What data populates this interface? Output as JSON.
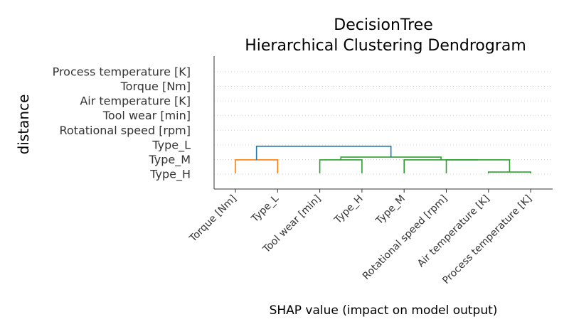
{
  "chart_data": {
    "type": "dendrogram",
    "title_line1": "DecisionTree",
    "title_line2": "Hierarchical Clustering Dendrogram",
    "xlabel": "SHAP value (impact on model output)",
    "ylabel": "distance",
    "y_tick_labels": [
      "Process temperature [K]",
      "Torque [Nm]",
      "Air temperature [K]",
      "Tool wear [min]",
      "Rotational speed [rpm]",
      "Type_L",
      "Type_M",
      "Type_H"
    ],
    "leaves": [
      "Torque [Nm]",
      "Type_L",
      "Tool wear [min]",
      "Type_H",
      "Type_M",
      "Rotational speed [rpm]",
      "Air temperature [K]",
      "Process temperature [K]"
    ],
    "ylim": [
      0,
      9
    ],
    "links": [
      {
        "left": 0,
        "right": 1,
        "height": 1.0,
        "color": "#ff7f0e"
      },
      {
        "left": 2,
        "right": 3,
        "height": 1.0,
        "color": "#2ca02c"
      },
      {
        "left": 6,
        "right": 7,
        "height": 0.1,
        "color": "#2ca02c"
      },
      {
        "left": 5,
        "right": 10,
        "height": 1.0,
        "color": "#2ca02c"
      },
      {
        "left": 4,
        "right": 11,
        "height": 1.0,
        "color": "#2ca02c"
      },
      {
        "left": 9,
        "right": 12,
        "height": 1.2,
        "color": "#2ca02c"
      },
      {
        "left": 8,
        "right": 13,
        "height": 2.0,
        "color": "#1f77b4"
      }
    ],
    "grid": true
  }
}
